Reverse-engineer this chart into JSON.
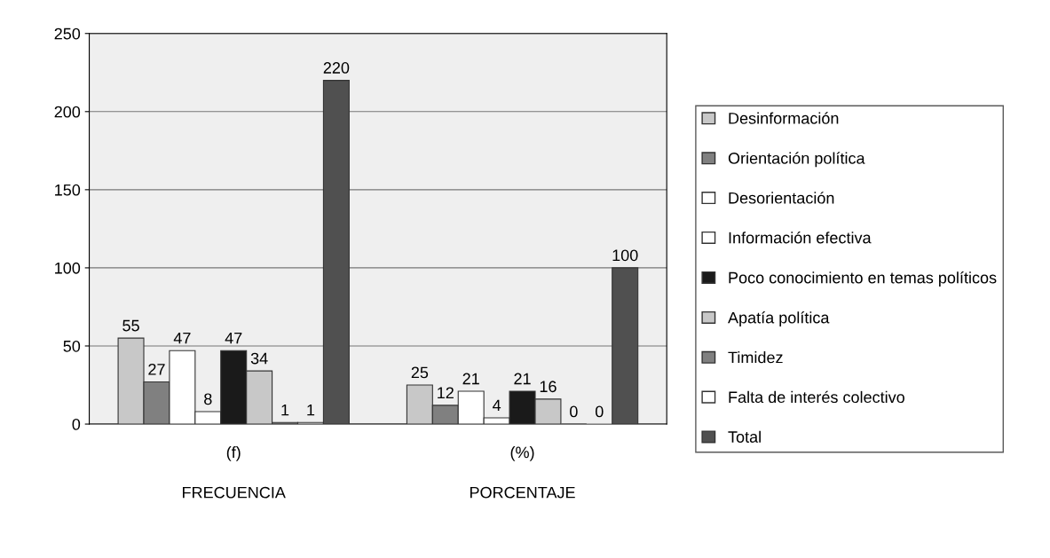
{
  "chart_data": {
    "type": "bar",
    "categories": [
      "(f)",
      "(%)"
    ],
    "series": [
      {
        "name": "Desinformación",
        "color": "#c8c8c8",
        "values": [
          55,
          25
        ]
      },
      {
        "name": "Orientación política",
        "color": "#808080",
        "values": [
          27,
          12
        ]
      },
      {
        "name": "Desorientación",
        "color": "#ffffff",
        "values": [
          47,
          21
        ]
      },
      {
        "name": "Información efectiva",
        "color": "#ffffff",
        "values": [
          8,
          4
        ]
      },
      {
        "name": "Poco conocimiento en temas políticos",
        "color": "#1a1a1a",
        "values": [
          47,
          21
        ]
      },
      {
        "name": "Apatía política",
        "color": "#c8c8c8",
        "values": [
          34,
          16
        ]
      },
      {
        "name": "Timidez",
        "color": "#808080",
        "values": [
          1,
          0
        ]
      },
      {
        "name": "Falta de interés colectivo",
        "color": "#ffffff",
        "values": [
          1,
          0
        ]
      },
      {
        "name": "Total",
        "color": "#505050",
        "values": [
          220,
          100
        ]
      }
    ],
    "annotations": [
      "FRECUENCIA",
      "PORCENTAJE"
    ],
    "ylim": [
      0,
      250
    ],
    "yticks": [
      0,
      50,
      100,
      150,
      200,
      250
    ],
    "grid": "y",
    "legend": "right",
    "data_labels": true
  }
}
